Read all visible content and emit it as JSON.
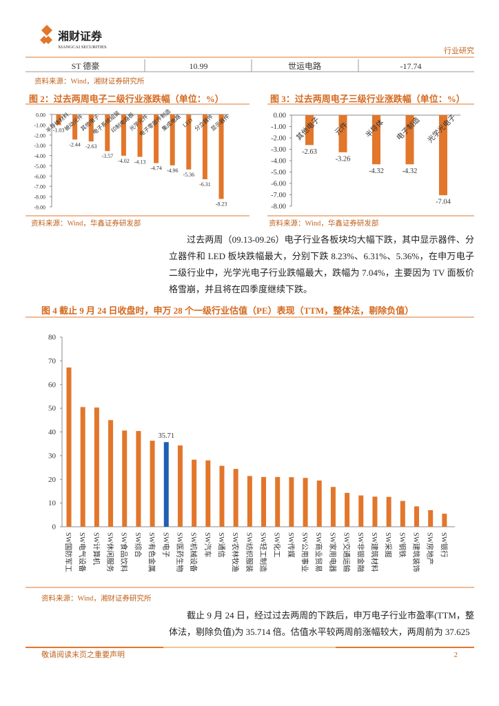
{
  "header": {
    "logo": "湘财证券",
    "logo_sub": "XIANGCAI SECURITIES",
    "section": "行业研究"
  },
  "table": {
    "rows": [
      [
        "ST 德豪",
        "10.99",
        "世运电路",
        "-17.74"
      ]
    ]
  },
  "table_source": "资料来源：Wind，湘财证券研究所",
  "chart_data": [
    {
      "type": "bar",
      "title": "图 2：过去两周电子二级行业涨跌幅（单位：%）",
      "categories": [
        "半导体材料",
        "被动元件",
        "其他电子",
        "电子系统组装",
        "印制电路板",
        "光学元件",
        "电子零部件制造",
        "集成电路",
        "LED",
        "分立器件",
        "显示器件"
      ],
      "values": [
        -1.03,
        -2.44,
        -2.63,
        -3.57,
        -4.02,
        -4.13,
        -4.74,
        -4.96,
        -5.36,
        -6.31,
        -8.23
      ],
      "color": "#e2762b",
      "ylim": [
        -9,
        0
      ],
      "yticks": [
        {
          "value": 0,
          "label": "0.00"
        },
        {
          "value": -1,
          "label": "-1.00"
        },
        {
          "value": -2,
          "label": "-2.00"
        },
        {
          "value": -3,
          "label": "-3.00"
        },
        {
          "value": -4,
          "label": "-4.00"
        },
        {
          "value": -5,
          "label": "-5.00"
        },
        {
          "value": -6,
          "label": "-6.00"
        },
        {
          "value": -7,
          "label": "-7.00"
        },
        {
          "value": -8,
          "label": "-8.00"
        },
        {
          "value": -9,
          "label": "-9.00"
        }
      ],
      "source": "资料来源：Wind，华鑫证券研发部"
    },
    {
      "type": "bar",
      "title": "图 3：过去两周电子三级行业涨跌幅（单位：%）",
      "categories": [
        "其他电子",
        "元件",
        "半导体",
        "电子制造",
        "光学光电子"
      ],
      "values": [
        -2.63,
        -3.26,
        -4.32,
        -4.32,
        -7.04
      ],
      "color": "#e2762b",
      "ylim": [
        -8,
        0
      ],
      "yticks": [
        {
          "value": 0,
          "label": "0.00"
        },
        {
          "value": -1,
          "label": "-1.00"
        },
        {
          "value": -2,
          "label": "-2.00"
        },
        {
          "value": -3,
          "label": "-3.00"
        },
        {
          "value": -4,
          "label": "-4.00"
        },
        {
          "value": -5,
          "label": "-5.00"
        },
        {
          "value": -6,
          "label": "-6.00"
        },
        {
          "value": -7,
          "label": "-7.00"
        },
        {
          "value": -8,
          "label": "-8.00"
        }
      ],
      "source": "资料来源：Wind，华鑫证券研发部"
    },
    {
      "type": "bar",
      "title": "图 4  截止 9 月 24 日收盘时，申万 28 个一级行业估值（PE）表现（TTM，整体法，剔除负值）",
      "categories": [
        "SW国防军工",
        "SW电气设备",
        "SW计算机",
        "SW休闲服务",
        "SW食品饮料",
        "SW综合",
        "SW有色金属",
        "SW电子",
        "SW医药生物",
        "SW机械设备",
        "SW汽车",
        "SW通信",
        "SW农林牧渔",
        "SW纺织服装",
        "SW轻工制造",
        "SW化工",
        "SW传媒",
        "SW公用事业",
        "SW商业贸易",
        "SW家用电器",
        "SW交通运输",
        "SW非银金融",
        "SW建筑材料",
        "SW采掘",
        "SW钢铁",
        "SW建筑装饰",
        "SW房地产",
        "SW银行"
      ],
      "values": [
        67.2,
        50.5,
        50.3,
        45,
        40.6,
        40.4,
        36.3,
        35.71,
        34.3,
        28.3,
        28,
        25.7,
        24.4,
        21.4,
        21,
        21,
        20.9,
        20.6,
        19.5,
        16.8,
        14.3,
        13.2,
        12.7,
        12.6,
        10.9,
        8.6,
        7,
        5.5
      ],
      "color": "#e2762b",
      "highlight": {
        "category": "SW电子",
        "color": "#1f5fb4"
      },
      "ylim": [
        0,
        80
      ],
      "yticks": [
        0,
        10,
        20,
        30,
        40,
        50,
        60,
        70,
        80
      ],
      "source": "资料来源：Wind，湘财证券研究所"
    }
  ],
  "paragraphs": [
    "过去两周（09.13-09.26）电子行业各板块均大幅下跌，其中显示器件、分立器件和 LED 板块跌幅最大，分别下跌 8.23%、6.31%、5.36%，在申万电子二级行业中，光学光电子行业跌幅最大，跌幅为 7.04%，主要因为 TV 面板价格雪崩，并且将在四季度继续下跌。",
    "截止 9 月 24 日，经过过去两周的下跌后，申万电子行业市盈率(TTM，整体法，剔除负值)为 35.714 倍。估值水平较两周前涨幅较大，两周前为 37.625"
  ],
  "footer": {
    "disclaimer": "敬请阅读末页之重要声明",
    "page": "2"
  }
}
